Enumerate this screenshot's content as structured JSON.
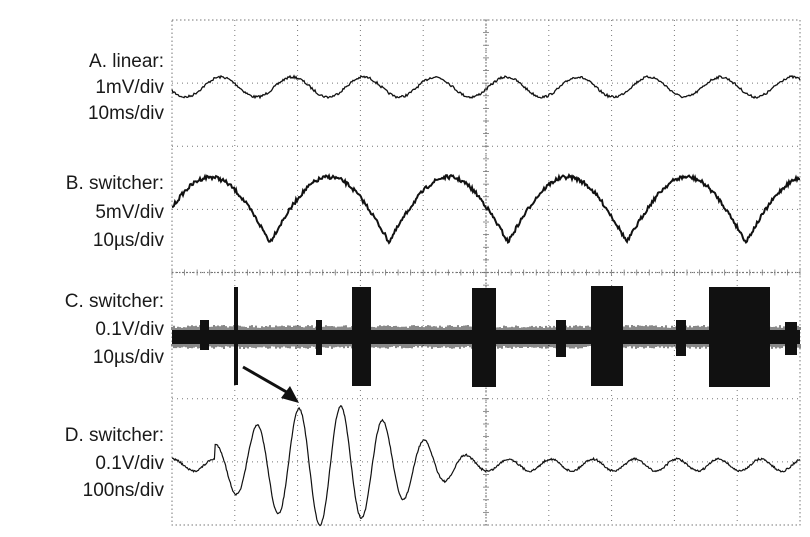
{
  "traces": [
    {
      "id": "A",
      "title": "A. linear:",
      "vdiv": "1mV/div",
      "tdiv": "10ms/div"
    },
    {
      "id": "B",
      "title": "B. switcher:",
      "vdiv": "5mV/div",
      "tdiv": "10µs/div"
    },
    {
      "id": "C",
      "title": "C. switcher:",
      "vdiv": "0.1V/div",
      "tdiv": "10µs/div"
    },
    {
      "id": "D",
      "title": "D. switcher:",
      "vdiv": "0.1V/div",
      "tdiv": "100ns/div"
    }
  ],
  "colors": {
    "trace": "#111111",
    "grid": "#777777",
    "text": "#1a1a1a"
  }
}
